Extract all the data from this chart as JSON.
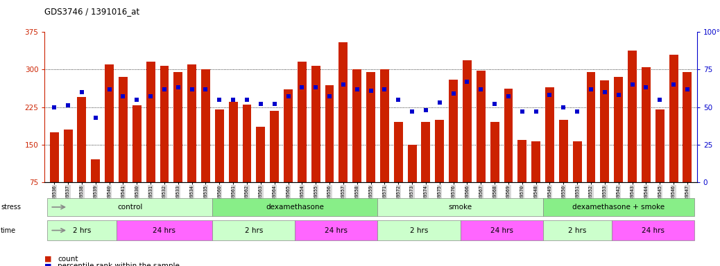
{
  "title": "GDS3746 / 1391016_at",
  "samples": [
    "GSM389536",
    "GSM389537",
    "GSM389538",
    "GSM389539",
    "GSM389540",
    "GSM389541",
    "GSM389530",
    "GSM389531",
    "GSM389532",
    "GSM389533",
    "GSM389534",
    "GSM389535",
    "GSM389560",
    "GSM389561",
    "GSM389562",
    "GSM389563",
    "GSM389564",
    "GSM389565",
    "GSM389554",
    "GSM389555",
    "GSM389556",
    "GSM389557",
    "GSM389558",
    "GSM389559",
    "GSM389571",
    "GSM389572",
    "GSM389573",
    "GSM389574",
    "GSM389575",
    "GSM389576",
    "GSM389566",
    "GSM389567",
    "GSM389568",
    "GSM389569",
    "GSM389570",
    "GSM389548",
    "GSM389549",
    "GSM389550",
    "GSM389551",
    "GSM389552",
    "GSM389553",
    "GSM389542",
    "GSM389543",
    "GSM389544",
    "GSM389545",
    "GSM389546",
    "GSM389547"
  ],
  "counts": [
    175,
    180,
    245,
    120,
    310,
    285,
    228,
    315,
    308,
    295,
    310,
    300,
    220,
    235,
    230,
    185,
    218,
    260,
    315,
    308,
    268,
    355,
    300,
    295,
    300,
    195,
    150,
    195,
    200,
    280,
    318,
    298,
    195,
    262,
    160,
    157,
    265,
    200,
    157,
    295,
    278,
    285,
    338,
    305,
    220,
    330,
    295
  ],
  "percentiles": [
    50,
    51,
    60,
    43,
    62,
    57,
    55,
    57,
    62,
    63,
    62,
    62,
    55,
    55,
    55,
    52,
    52,
    57,
    63,
    63,
    57,
    65,
    62,
    61,
    62,
    55,
    47,
    48,
    53,
    59,
    67,
    62,
    52,
    57,
    47,
    47,
    58,
    50,
    47,
    62,
    60,
    58,
    65,
    63,
    55,
    65,
    62
  ],
  "ylim_left": [
    75,
    375
  ],
  "ylim_right": [
    0,
    100
  ],
  "yticks_left": [
    75,
    150,
    225,
    300,
    375
  ],
  "yticks_right": [
    0,
    25,
    50,
    75,
    100
  ],
  "bar_color": "#cc2200",
  "dot_color": "#0000cc",
  "bar_width": 0.65,
  "stress_groups": [
    {
      "label": "control",
      "start": 0,
      "end": 11,
      "color": "#ccffcc"
    },
    {
      "label": "dexamethasone",
      "start": 12,
      "end": 23,
      "color": "#88ee88"
    },
    {
      "label": "smoke",
      "start": 24,
      "end": 35,
      "color": "#ccffcc"
    },
    {
      "label": "dexamethasone + smoke",
      "start": 36,
      "end": 46,
      "color": "#88ee88"
    }
  ],
  "time_groups": [
    {
      "label": "2 hrs",
      "start": 0,
      "end": 4,
      "color": "#ddffdd"
    },
    {
      "label": "24 hrs",
      "start": 5,
      "end": 11,
      "color": "#ee44ee"
    },
    {
      "label": "2 hrs",
      "start": 12,
      "end": 17,
      "color": "#ddffdd"
    },
    {
      "label": "24 hrs",
      "start": 18,
      "end": 23,
      "color": "#ee44ee"
    },
    {
      "label": "2 hrs",
      "start": 24,
      "end": 29,
      "color": "#ddffdd"
    },
    {
      "label": "24 hrs",
      "start": 30,
      "end": 35,
      "color": "#ee44ee"
    },
    {
      "label": "2 hrs",
      "start": 36,
      "end": 40,
      "color": "#ddffdd"
    },
    {
      "label": "24 hrs",
      "start": 41,
      "end": 46,
      "color": "#ee44ee"
    }
  ],
  "xtick_bg": "#d8d8d8",
  "arrow_color": "#888888"
}
